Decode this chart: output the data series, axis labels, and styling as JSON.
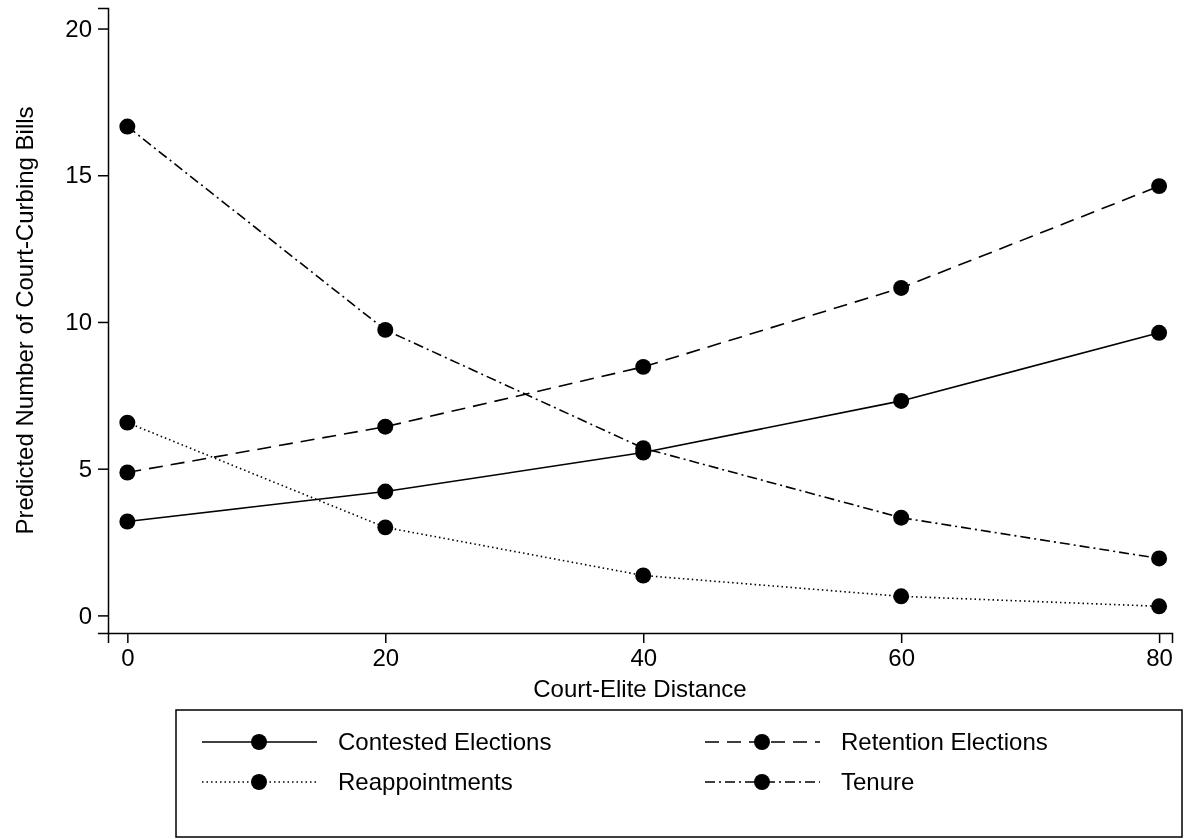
{
  "chart_data": {
    "type": "line",
    "xlabel": "Court-Elite Distance",
    "ylabel": "Predicted Number of Court-Curbing Bills",
    "x": [
      0,
      20,
      40,
      60,
      80
    ],
    "xlim": [
      -1.5,
      81
    ],
    "xticks": [
      0,
      20,
      40,
      60,
      80
    ],
    "ylim": [
      -0.6,
      20.7
    ],
    "yticks": [
      0,
      5,
      10,
      15,
      20
    ],
    "grid": false,
    "legend": "bottom",
    "marker": "circle",
    "series": [
      {
        "name": "Contested Elections",
        "color": "#000000",
        "line_style": "solid",
        "values": [
          3.2,
          4.22,
          5.55,
          7.31,
          9.63
        ]
      },
      {
        "name": "Retention Elections",
        "color": "#000000",
        "line_style": "dashed",
        "values": [
          4.87,
          6.43,
          8.47,
          11.16,
          14.63
        ]
      },
      {
        "name": "Reappointments",
        "color": "#000000",
        "line_style": "dotted",
        "values": [
          6.57,
          3.0,
          1.36,
          0.65,
          0.31
        ]
      },
      {
        "name": "Tenure",
        "color": "#000000",
        "line_style": "dashdot",
        "values": [
          16.66,
          9.73,
          5.7,
          3.33,
          1.94
        ]
      }
    ]
  }
}
